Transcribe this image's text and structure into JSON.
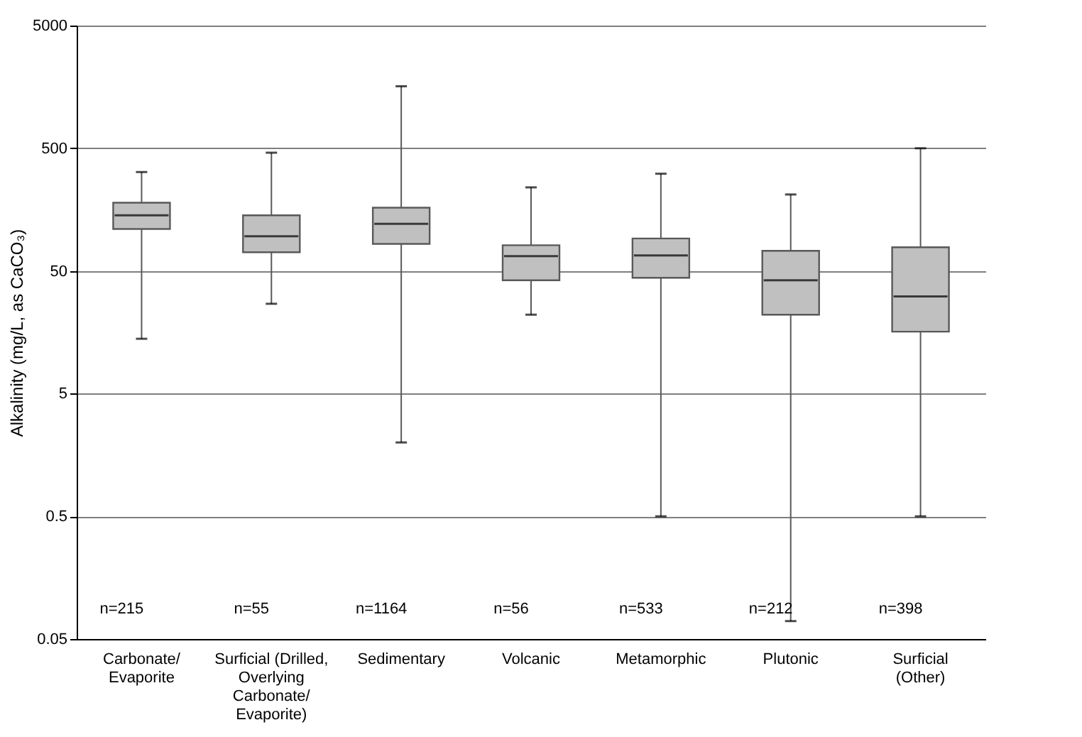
{
  "chart_data": {
    "type": "box",
    "ylabel": "Alkalinity (mg/L, as CaCO₃)",
    "categories": [
      "Carbonate/\nEvaporite",
      "Surficial (Drilled,\nOverlying\nCarbonate/\nEvaporite)",
      "Sedimentary",
      "Volcanic",
      "Metamorphic",
      "Plutonic",
      "Surficial\n(Other)"
    ],
    "boxes": [
      {
        "low": 14,
        "q1": 110,
        "median": 142,
        "q3": 180,
        "high": 320
      },
      {
        "low": 27,
        "q1": 71,
        "median": 96,
        "q3": 142,
        "high": 460
      },
      {
        "low": 2,
        "q1": 83,
        "median": 121,
        "q3": 164,
        "high": 1600
      },
      {
        "low": 22,
        "q1": 42,
        "median": 66,
        "q3": 81,
        "high": 240
      },
      {
        "low": 0.5,
        "q1": 44,
        "median": 67,
        "q3": 92,
        "high": 310
      },
      {
        "low": 0.07,
        "q1": 22,
        "median": 42,
        "q3": 73,
        "high": 210
      },
      {
        "low": 0.5,
        "q1": 16,
        "median": 31,
        "q3": 78,
        "high": 500
      }
    ],
    "color": "#c0c0c0",
    "log": true,
    "ylim": [
      0.05,
      5000
    ],
    "yticks": [
      0.05,
      0.5,
      5,
      50,
      500,
      5000
    ],
    "grid": "y",
    "annotations": [
      "n=215",
      "n=55",
      "n=1164",
      "n=56",
      "n=533",
      "n=212",
      "n=398"
    ]
  }
}
